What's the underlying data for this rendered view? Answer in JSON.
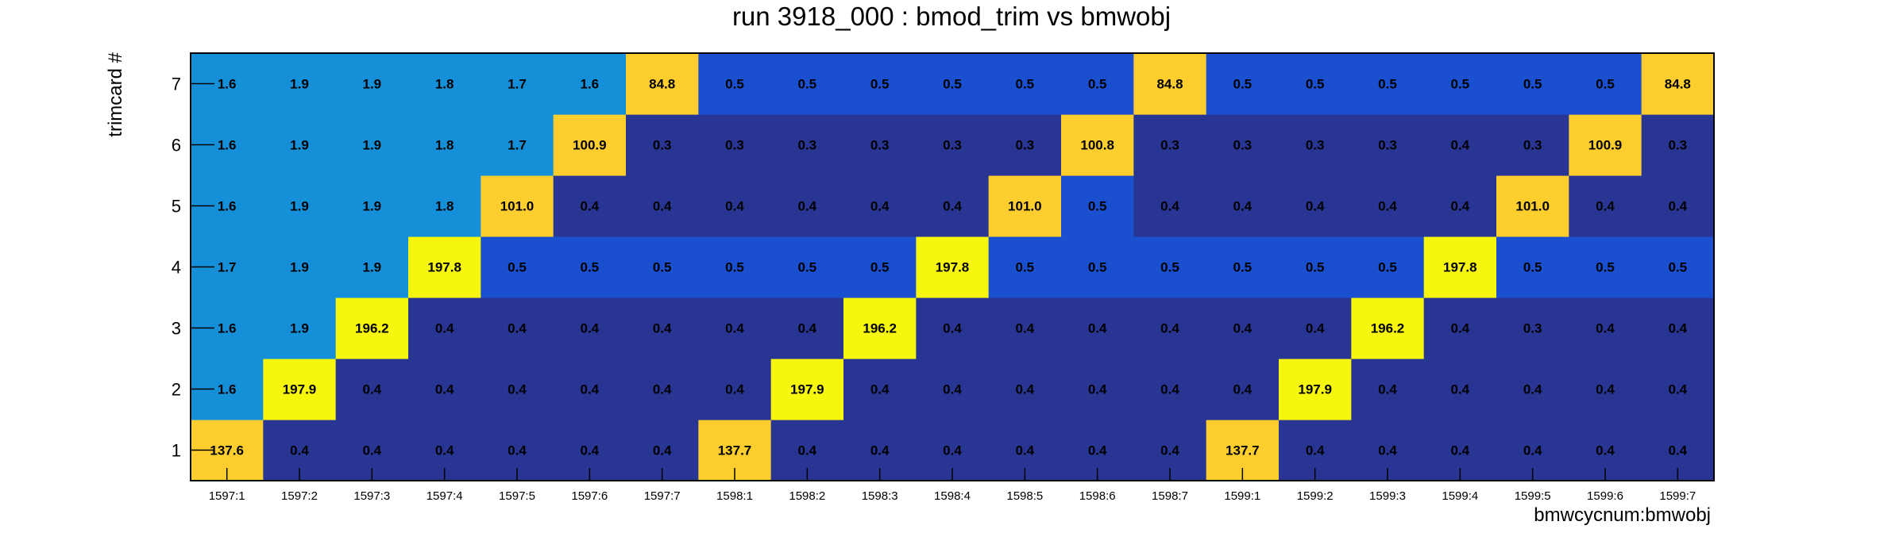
{
  "chart_data": {
    "type": "heatmap",
    "title": "run 3918_000 : bmod_trim vs bmwobj",
    "xlabel": "bmwcycnum:bmwobj",
    "ylabel": "trimcard #",
    "x_categories": [
      "1597:1",
      "1597:2",
      "1597:3",
      "1597:4",
      "1597:5",
      "1597:6",
      "1597:7",
      "1598:1",
      "1598:2",
      "1598:3",
      "1598:4",
      "1598:5",
      "1598:6",
      "1598:7",
      "1599:1",
      "1599:2",
      "1599:3",
      "1599:4",
      "1599:5",
      "1599:6",
      "1599:7"
    ],
    "y_categories": [
      "1",
      "2",
      "3",
      "4",
      "5",
      "6",
      "7"
    ],
    "values": [
      [
        137.6,
        0.4,
        0.4,
        0.4,
        0.4,
        0.4,
        0.4,
        137.7,
        0.4,
        0.4,
        0.4,
        0.4,
        0.4,
        0.4,
        137.7,
        0.4,
        0.4,
        0.4,
        0.4,
        0.4,
        0.4
      ],
      [
        1.6,
        197.9,
        0.4,
        0.4,
        0.4,
        0.4,
        0.4,
        0.4,
        197.9,
        0.4,
        0.4,
        0.4,
        0.4,
        0.4,
        0.4,
        197.9,
        0.4,
        0.4,
        0.4,
        0.4,
        0.4
      ],
      [
        1.6,
        1.9,
        196.2,
        0.4,
        0.4,
        0.4,
        0.4,
        0.4,
        0.4,
        196.2,
        0.4,
        0.4,
        0.4,
        0.4,
        0.4,
        0.4,
        196.2,
        0.4,
        0.3,
        0.4,
        0.4
      ],
      [
        1.7,
        1.9,
        1.9,
        197.8,
        0.5,
        0.5,
        0.5,
        0.5,
        0.5,
        0.5,
        197.8,
        0.5,
        0.5,
        0.5,
        0.5,
        0.5,
        0.5,
        197.8,
        0.5,
        0.5,
        0.5
      ],
      [
        1.6,
        1.9,
        1.9,
        1.8,
        101.0,
        0.4,
        0.4,
        0.4,
        0.4,
        0.4,
        0.4,
        101.0,
        0.5,
        0.4,
        0.4,
        0.4,
        0.4,
        0.4,
        101.0,
        0.4,
        0.4
      ],
      [
        1.6,
        1.9,
        1.9,
        1.8,
        1.7,
        100.9,
        0.3,
        0.3,
        0.3,
        0.3,
        0.3,
        0.3,
        100.8,
        0.3,
        0.3,
        0.3,
        0.3,
        0.4,
        0.3,
        100.9,
        0.3
      ],
      [
        1.6,
        1.9,
        1.9,
        1.8,
        1.7,
        1.6,
        84.8,
        0.5,
        0.5,
        0.5,
        0.5,
        0.5,
        0.5,
        84.8,
        0.5,
        0.5,
        0.5,
        0.5,
        0.5,
        0.5,
        84.8
      ]
    ],
    "value_format": "one decimal place",
    "colors": {
      "low": "#283593",
      "mid_low": "#1a4fd0",
      "mid": "#1590d8",
      "high": "#fdce2d",
      "max": "#f6f60e",
      "frame": "#000000"
    },
    "grid": false,
    "legend": "none"
  }
}
